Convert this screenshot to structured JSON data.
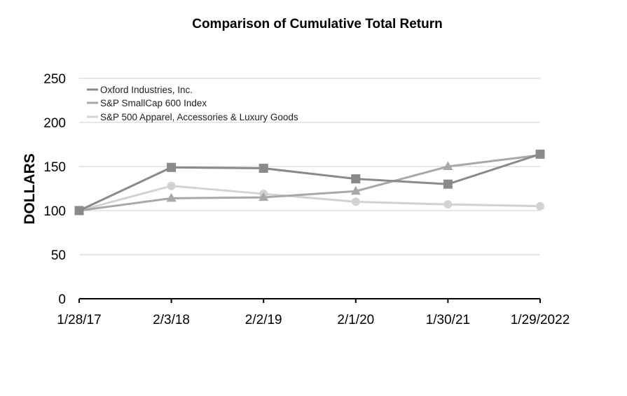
{
  "chart_data": {
    "type": "line",
    "title": "Comparison of Cumulative Total Return",
    "xlabel": "",
    "ylabel": "DOLLARS",
    "categories": [
      "1/28/17",
      "2/3/18",
      "2/2/19",
      "2/1/20",
      "1/30/21",
      "1/29/2022"
    ],
    "ylim": [
      0,
      250
    ],
    "yticks": [
      0,
      50,
      100,
      150,
      200,
      250
    ],
    "grid": true,
    "legend_position": "top-left",
    "series": [
      {
        "name": "Oxford Industries, Inc.",
        "values": [
          100,
          149,
          148,
          136,
          130,
          164
        ],
        "marker": "square",
        "color": "#8a8a8a"
      },
      {
        "name": "S&P SmallCap 600 Index",
        "values": [
          100,
          114,
          115,
          122,
          150,
          163
        ],
        "marker": "triangle",
        "color": "#a8a8a8"
      },
      {
        "name": "S&P 500 Apparel, Accessories & Luxury Goods",
        "values": [
          100,
          128,
          119,
          110,
          107,
          105
        ],
        "marker": "circle",
        "color": "#d2d2d2"
      }
    ]
  }
}
